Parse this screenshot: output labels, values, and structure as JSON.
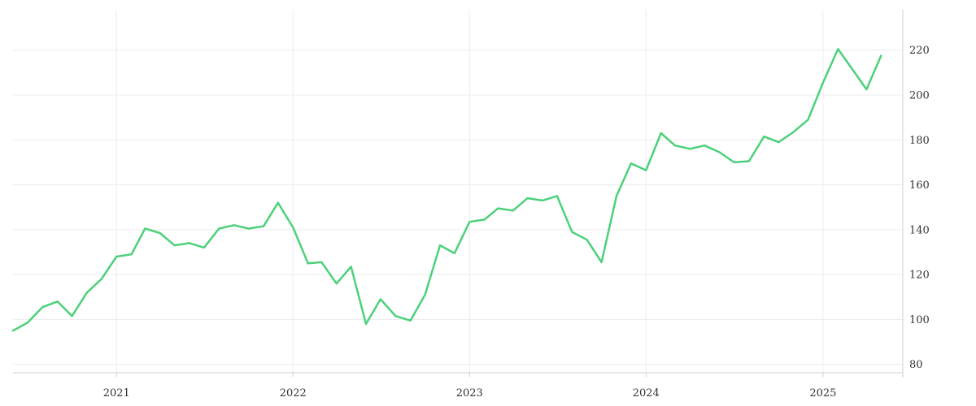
{
  "chart_data": {
    "type": "line",
    "title": "",
    "xlabel": "",
    "ylabel": "",
    "x_tick_labels": [
      "2021",
      "2022",
      "2023",
      "2024",
      "2025"
    ],
    "x_tick_dates": [
      "2021-01-01",
      "2022-01-01",
      "2023-01-01",
      "2024-01-01",
      "2025-01-01"
    ],
    "xlim": [
      "2020-06-01",
      "2025-06-15"
    ],
    "y_tick_labels": [
      "80",
      "100",
      "120",
      "140",
      "160",
      "180",
      "200",
      "220"
    ],
    "y_ticks": [
      80,
      100,
      120,
      140,
      160,
      180,
      200,
      220
    ],
    "ylim": [
      73,
      238
    ],
    "y_axis_position": "right",
    "grid": true,
    "legend": "none",
    "colors": {
      "line": "#4cd17a",
      "grid": "#ececec",
      "axis": "#cfcfcf",
      "text": "#333333"
    },
    "series": [
      {
        "points": [
          [
            "2020-06-01",
            95
          ],
          [
            "2020-07-01",
            98.5
          ],
          [
            "2020-08-01",
            105.5
          ],
          [
            "2020-09-01",
            108
          ],
          [
            "2020-10-01",
            101.5
          ],
          [
            "2020-11-01",
            112
          ],
          [
            "2020-12-01",
            118
          ],
          [
            "2021-01-01",
            128
          ],
          [
            "2021-02-01",
            129
          ],
          [
            "2021-03-01",
            140.5
          ],
          [
            "2021-04-01",
            138.5
          ],
          [
            "2021-05-01",
            133
          ],
          [
            "2021-06-01",
            134
          ],
          [
            "2021-07-01",
            132
          ],
          [
            "2021-08-01",
            140.5
          ],
          [
            "2021-09-01",
            142
          ],
          [
            "2021-10-01",
            140.5
          ],
          [
            "2021-11-01",
            141.5
          ],
          [
            "2021-12-01",
            152
          ],
          [
            "2022-01-01",
            141
          ],
          [
            "2022-02-01",
            125
          ],
          [
            "2022-03-01",
            125.5
          ],
          [
            "2022-04-01",
            116
          ],
          [
            "2022-05-01",
            123.5
          ],
          [
            "2022-06-01",
            98
          ],
          [
            "2022-07-01",
            109
          ],
          [
            "2022-08-01",
            101.5
          ],
          [
            "2022-09-01",
            99.5
          ],
          [
            "2022-10-01",
            111
          ],
          [
            "2022-11-01",
            133
          ],
          [
            "2022-12-01",
            129.5
          ],
          [
            "2023-01-01",
            143.5
          ],
          [
            "2023-02-01",
            144.5
          ],
          [
            "2023-03-01",
            149.5
          ],
          [
            "2023-04-01",
            148.5
          ],
          [
            "2023-05-01",
            154
          ],
          [
            "2023-06-01",
            153
          ],
          [
            "2023-07-01",
            155
          ],
          [
            "2023-08-01",
            139
          ],
          [
            "2023-09-01",
            135.5
          ],
          [
            "2023-10-01",
            125.5
          ],
          [
            "2023-11-01",
            155
          ],
          [
            "2023-12-01",
            169.5
          ],
          [
            "2024-01-01",
            166.5
          ],
          [
            "2024-02-01",
            183
          ],
          [
            "2024-03-01",
            177.5
          ],
          [
            "2024-04-01",
            176
          ],
          [
            "2024-05-01",
            177.5
          ],
          [
            "2024-06-01",
            174.5
          ],
          [
            "2024-07-01",
            170
          ],
          [
            "2024-08-01",
            170.5
          ],
          [
            "2024-09-01",
            181.5
          ],
          [
            "2024-10-01",
            179
          ],
          [
            "2024-11-01",
            183.5
          ],
          [
            "2024-12-01",
            189
          ],
          [
            "2025-01-01",
            205.5
          ],
          [
            "2025-02-01",
            220.5
          ],
          [
            "2025-03-01",
            212
          ],
          [
            "2025-04-01",
            202.5
          ],
          [
            "2025-05-01",
            217.5
          ]
        ]
      }
    ]
  }
}
